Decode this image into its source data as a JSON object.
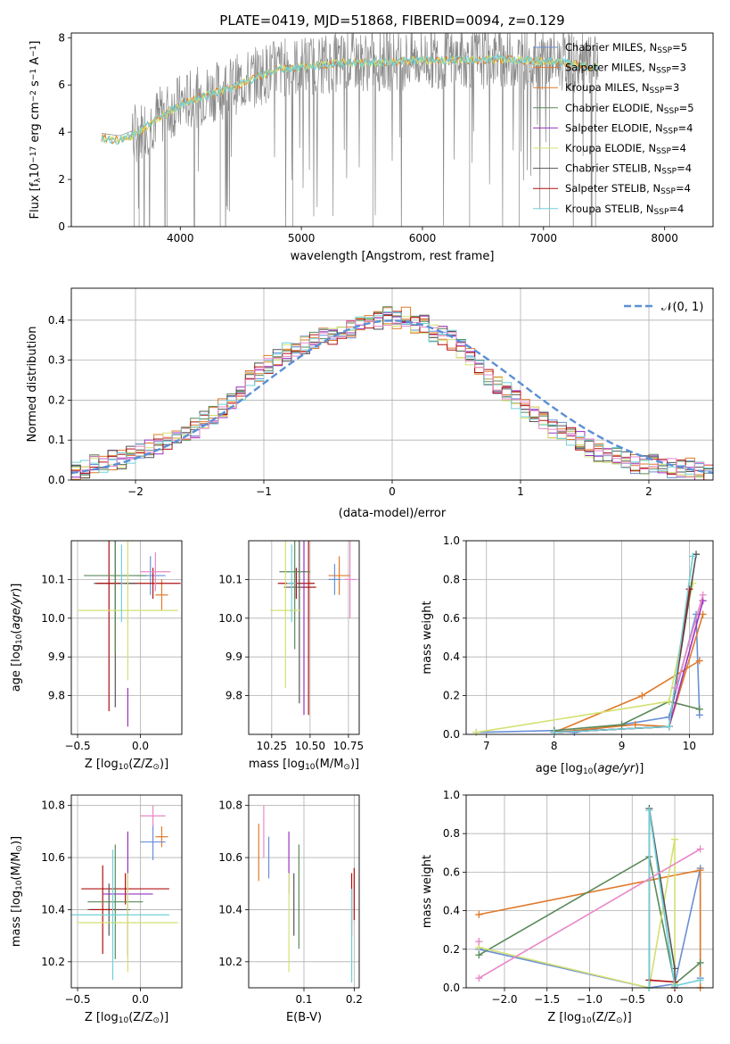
{
  "figure_title": "PLATE=0419, MJD=51868, FIBERID=0094, z=0.129",
  "colors": [
    "#6a8fd8",
    "#e07a2a",
    "#e07a2a",
    "#5a8a5a",
    "#9b30c0",
    "#d4e070",
    "#555555",
    "#b01010",
    "#70d0d8",
    "#e888c8"
  ],
  "chart_data": [
    {
      "id": "spectrum",
      "type": "line",
      "title": "PLATE=0419, MJD=51868, FIBERID=0094, z=0.129",
      "xlabel": "wavelength [Angstrom, rest frame]",
      "ylabel": "Flux [f",
      "ylabel_sub": "λ",
      "ylabel_rest": "10",
      "ylabel_exp": "−17",
      "ylabel_units": " erg cm",
      "ylabel_units_exp": "−2",
      "ylabel_units2": " s",
      "ylabel_units2_exp": "−1",
      "ylabel_units3": " A",
      "ylabel_units3_exp": "−1",
      "ylabel_tail": "]",
      "xlim": [
        3100,
        8400
      ],
      "ylim": [
        0,
        8.2
      ],
      "xticks": [
        4000,
        5000,
        6000,
        7000,
        8000
      ],
      "yticks": [
        0,
        2,
        4,
        6,
        8
      ],
      "grid": false,
      "legend_position": "top-right",
      "legend": [
        {
          "label": "Chabrier MILES, N",
          "sub": "SSP",
          "tail": "=5",
          "color": "#6a8fd8"
        },
        {
          "label": "Salpeter MILES, N",
          "sub": "SSP",
          "tail": "=3",
          "color": "#e07a2a"
        },
        {
          "label": "Kroupa MILES, N",
          "sub": "SSP",
          "tail": "=3",
          "color": "#e07a2a"
        },
        {
          "label": "Chabrier ELODIE, N",
          "sub": "SSP",
          "tail": "=5",
          "color": "#5a8a5a"
        },
        {
          "label": "Salpeter ELODIE, N",
          "sub": "SSP",
          "tail": "=4",
          "color": "#9b30c0"
        },
        {
          "label": "Kroupa ELODIE, N",
          "sub": "SSP",
          "tail": "=4",
          "color": "#d4e070"
        },
        {
          "label": "Chabrier STELIB, N",
          "sub": "SSP",
          "tail": "=4",
          "color": "#555555"
        },
        {
          "label": "Salpeter STELIB, N",
          "sub": "SSP",
          "tail": "=4",
          "color": "#b01010"
        },
        {
          "label": "Kroupa STELIB, N",
          "sub": "SSP",
          "tail": "=4",
          "color": "#70d0d8"
        }
      ],
      "data_continuum": {
        "x": [
          3350,
          3500,
          3650,
          3800,
          4000,
          4200,
          4400,
          4600,
          4800,
          5000,
          5200,
          5400,
          5600,
          5800,
          6000,
          6200,
          6400,
          6600,
          6800,
          7000,
          7200,
          7400
        ],
        "y": [
          3.8,
          3.7,
          4.0,
          4.6,
          5.2,
          5.6,
          5.9,
          6.3,
          6.7,
          6.8,
          6.9,
          7.0,
          7.0,
          7.05,
          7.1,
          7.1,
          7.1,
          7.15,
          7.1,
          7.05,
          7.0,
          6.8
        ]
      }
    },
    {
      "id": "residuals",
      "type": "line",
      "xlabel": "(data-model)/error",
      "ylabel": "Normed distribution",
      "xlim": [
        -2.5,
        2.5
      ],
      "ylim": [
        0,
        0.48
      ],
      "xticks": [
        -2,
        -1,
        0,
        1,
        2
      ],
      "xtick_labels": [
        "−2",
        "−1",
        "0",
        "1",
        "2"
      ],
      "yticks": [
        0.0,
        0.1,
        0.2,
        0.3,
        0.4
      ],
      "ytick_labels": [
        "0.0",
        "0.1",
        "0.2",
        "0.3",
        "0.4"
      ],
      "grid": true,
      "legend_position": "top-right",
      "legend_label": "𝒩(0, 1)",
      "gaussian": {
        "mean": 0,
        "sigma": 1
      },
      "histogram_bin_width": 0.1,
      "histogram_mean": [
        0.02,
        0.03,
        0.04,
        0.04,
        0.05,
        0.05,
        0.06,
        0.07,
        0.08,
        0.09,
        0.1,
        0.11,
        0.12,
        0.13,
        0.15,
        0.16,
        0.18,
        0.2,
        0.22,
        0.25,
        0.27,
        0.29,
        0.31,
        0.32,
        0.33,
        0.34,
        0.35,
        0.36,
        0.36,
        0.37,
        0.38,
        0.39,
        0.4,
        0.4,
        0.41,
        0.4,
        0.41,
        0.39,
        0.39,
        0.37,
        0.36,
        0.35,
        0.33,
        0.31,
        0.29,
        0.26,
        0.24,
        0.22,
        0.2,
        0.18,
        0.16,
        0.15,
        0.13,
        0.12,
        0.11,
        0.1,
        0.08,
        0.07,
        0.06,
        0.06,
        0.05,
        0.04,
        0.04,
        0.04,
        0.03,
        0.03,
        0.03,
        0.03,
        0.02,
        0.02
      ]
    },
    {
      "id": "age_vs_Z",
      "type": "scatter",
      "xlabel": "Z [log",
      "xlabel_sub": "10",
      "xlabel_rest": "(Z/Z",
      "xlabel_sub2": "⊙",
      "xlabel_tail": ")]",
      "ylabel": "age  [log",
      "ylabel_sub": "10",
      "ylabel_tail": "(age/yr)]",
      "xlim": [
        -0.55,
        0.33
      ],
      "ylim": [
        9.7,
        10.2
      ],
      "xticks": [
        -0.5,
        0.0
      ],
      "xtick_labels": [
        "−0.5",
        "0.0"
      ],
      "yticks": [
        9.8,
        9.9,
        10.0,
        10.1
      ],
      "ytick_labels": [
        "9.8",
        "9.9",
        "10.0",
        "10.1"
      ],
      "grid": true,
      "points": [
        {
          "x": 0.17,
          "y": 10.06,
          "xerr": 0.05,
          "yerr": 0.04,
          "color": "#e07a2a"
        },
        {
          "x": 0.08,
          "y": 10.11,
          "xerr": 0.12,
          "yerr": 0.05,
          "color": "#6a8fd8"
        },
        {
          "x": 0.1,
          "y": 10.09,
          "xerr": 0.22,
          "yerr": 0.04,
          "color": "#b01010"
        },
        {
          "x": -0.2,
          "y": 10.09,
          "xerr": 0.17,
          "yerr": 0.32,
          "color": "#555555"
        },
        {
          "x": -0.25,
          "y": 10.09,
          "xerr": 0.1,
          "yerr": 0.33,
          "color": "#b01010"
        },
        {
          "x": -0.2,
          "y": 10.11,
          "xerr": 0.25,
          "yerr": 0.2,
          "color": "#5a8a5a"
        },
        {
          "x": -0.1,
          "y": 9.77,
          "xerr": 0.0,
          "yerr": 0.05,
          "color": "#9b30c0"
        },
        {
          "x": -0.1,
          "y": 10.02,
          "xerr": 0.4,
          "yerr": 0.18,
          "color": "#d4e070"
        },
        {
          "x": -0.15,
          "y": 10.09,
          "xerr": 0.0,
          "yerr": 0.1,
          "color": "#70d0d8"
        },
        {
          "x": 0.12,
          "y": 10.12,
          "xerr": 0.12,
          "yerr": 0.05,
          "color": "#e888c8"
        }
      ]
    },
    {
      "id": "age_vs_mass",
      "type": "scatter",
      "xlabel": "mass [log",
      "xlabel_sub": "10",
      "xlabel_rest": "(M/M",
      "xlabel_sub2": "⊙",
      "xlabel_tail": ")]",
      "xlim": [
        10.1,
        10.82
      ],
      "ylim": [
        9.7,
        10.2
      ],
      "xticks": [
        10.25,
        10.5,
        10.75
      ],
      "xtick_labels": [
        "10.25",
        "10.50",
        "10.75"
      ],
      "yticks": [
        9.8,
        9.9,
        10.0,
        10.1
      ],
      "ytick_labels": [
        "9.8",
        "9.9",
        "10.0",
        "10.1"
      ],
      "grid": true,
      "points": [
        {
          "x": 10.69,
          "y": 10.11,
          "xerr": 0.07,
          "yerr": 0.05,
          "color": "#e07a2a"
        },
        {
          "x": 10.66,
          "y": 10.1,
          "xerr": 0.04,
          "yerr": 0.04,
          "color": "#6a8fd8"
        },
        {
          "x": 10.41,
          "y": 10.09,
          "xerr": 0.12,
          "yerr": 0.04,
          "color": "#b01010"
        },
        {
          "x": 10.43,
          "y": 10.08,
          "xerr": 0.1,
          "yerr": 0.3,
          "color": "#555555"
        },
        {
          "x": 10.49,
          "y": 10.08,
          "xerr": 0.05,
          "yerr": 0.33,
          "color": "#b01010"
        },
        {
          "x": 10.4,
          "y": 10.12,
          "xerr": 0.1,
          "yerr": 0.2,
          "color": "#5a8a5a"
        },
        {
          "x": 10.46,
          "y": 10.0,
          "xerr": 0.0,
          "yerr": 0.25,
          "color": "#9b30c0"
        },
        {
          "x": 10.34,
          "y": 10.02,
          "xerr": 0.1,
          "yerr": 0.2,
          "color": "#d4e070"
        },
        {
          "x": 10.38,
          "y": 10.09,
          "xerr": 0.03,
          "yerr": 0.1,
          "color": "#70d0d8"
        },
        {
          "x": 10.76,
          "y": 10.1,
          "xerr": 0.04,
          "yerr": 0.1,
          "color": "#e888c8"
        }
      ]
    },
    {
      "id": "weight_vs_age",
      "type": "line",
      "xlabel": "age  [log",
      "xlabel_sub": "10",
      "xlabel_tail": "(age/yr)]",
      "ylabel": "mass weight",
      "xlim": [
        6.7,
        10.35
      ],
      "ylim": [
        0,
        1.0
      ],
      "xticks": [
        7,
        8,
        9,
        10
      ],
      "xtick_labels": [
        "7",
        "8",
        "9",
        "10"
      ],
      "yticks": [
        0.0,
        0.2,
        0.4,
        0.6,
        0.8,
        1.0
      ],
      "ytick_labels": [
        "0.0",
        "0.2",
        "0.4",
        "0.6",
        "0.8",
        "1.0"
      ],
      "grid": true,
      "series": [
        {
          "color": "#6a8fd8",
          "x": [
            6.85,
            8.0,
            8.3,
            9.7,
            10.1,
            10.15
          ],
          "y": [
            0.01,
            0.02,
            0.01,
            0.09,
            0.62,
            0.1
          ]
        },
        {
          "color": "#e07a2a",
          "x": [
            8.0,
            9.3,
            10.15
          ],
          "y": [
            0.01,
            0.2,
            0.38
          ]
        },
        {
          "color": "#e07a2a",
          "x": [
            8.0,
            9.2,
            9.7,
            10.2
          ],
          "y": [
            0.01,
            0.05,
            0.04,
            0.62
          ]
        },
        {
          "color": "#5a8a5a",
          "x": [
            8.0,
            9.0,
            9.7,
            10.15
          ],
          "y": [
            0.02,
            0.05,
            0.17,
            0.13
          ]
        },
        {
          "color": "#9b30c0",
          "x": [
            8.0,
            9.7,
            10.2
          ],
          "y": [
            0.01,
            0.04,
            0.69
          ]
        },
        {
          "color": "#d4e070",
          "x": [
            6.85,
            9.7,
            10.05
          ],
          "y": [
            0.01,
            0.17,
            0.78
          ]
        },
        {
          "color": "#555555",
          "x": [
            8.0,
            9.7,
            10.1
          ],
          "y": [
            0.01,
            0.04,
            0.93
          ]
        },
        {
          "color": "#b01010",
          "x": [
            8.0,
            9.7,
            10.0
          ],
          "y": [
            0.01,
            0.04,
            0.75
          ]
        },
        {
          "color": "#70d0d8",
          "x": [
            8.0,
            9.7,
            10.05
          ],
          "y": [
            0.01,
            0.04,
            0.92
          ]
        },
        {
          "color": "#e888c8",
          "x": [
            9.8,
            10.2
          ],
          "y": [
            0.24,
            0.72
          ]
        }
      ]
    },
    {
      "id": "mass_vs_Z",
      "type": "scatter",
      "xlabel": "Z [log",
      "xlabel_sub": "10",
      "xlabel_rest": "(Z/Z",
      "xlabel_sub2": "⊙",
      "xlabel_tail": ")]",
      "ylabel": "mass [log",
      "ylabel_sub": "10",
      "ylabel_rest": "(M/M",
      "ylabel_sub2": "⊙",
      "ylabel_tail": ")]",
      "xlim": [
        -0.55,
        0.33
      ],
      "ylim": [
        10.1,
        10.84
      ],
      "xticks": [
        -0.5,
        0.0
      ],
      "xtick_labels": [
        "−0.5",
        "0.0"
      ],
      "yticks": [
        10.2,
        10.4,
        10.6,
        10.8
      ],
      "ytick_labels": [
        "10.2",
        "10.4",
        "10.6",
        "10.8"
      ],
      "grid": true,
      "points": [
        {
          "x": 0.17,
          "y": 10.68,
          "xerr": 0.05,
          "yerr": 0.04,
          "color": "#e07a2a"
        },
        {
          "x": 0.1,
          "y": 10.66,
          "xerr": 0.1,
          "yerr": 0.07,
          "color": "#6a8fd8"
        },
        {
          "x": -0.12,
          "y": 10.48,
          "xerr": 0.35,
          "yerr": 0.06,
          "color": "#b01010"
        },
        {
          "x": -0.25,
          "y": 10.4,
          "xerr": 0.17,
          "yerr": 0.1,
          "color": "#555555"
        },
        {
          "x": -0.3,
          "y": 10.4,
          "xerr": 0.1,
          "yerr": 0.17,
          "color": "#b01010"
        },
        {
          "x": -0.2,
          "y": 10.43,
          "xerr": 0.22,
          "yerr": 0.22,
          "color": "#5a8a5a"
        },
        {
          "x": -0.1,
          "y": 10.46,
          "xerr": 0.2,
          "yerr": 0.24,
          "color": "#9b30c0"
        },
        {
          "x": -0.1,
          "y": 10.35,
          "xerr": 0.4,
          "yerr": 0.19,
          "color": "#d4e070"
        },
        {
          "x": -0.22,
          "y": 10.38,
          "xerr": 0.45,
          "yerr": 0.25,
          "color": "#70d0d8"
        },
        {
          "x": 0.1,
          "y": 10.76,
          "xerr": 0.1,
          "yerr": 0.04,
          "color": "#e888c8"
        }
      ]
    },
    {
      "id": "mass_vs_ebv",
      "type": "scatter",
      "xlabel": "E(B-V)",
      "xlim": [
        -0.01,
        0.21
      ],
      "ylim": [
        10.1,
        10.84
      ],
      "xticks": [
        0.1,
        0.2
      ],
      "xtick_labels": [
        "0.1",
        "0.2"
      ],
      "yticks": [
        10.2,
        10.4,
        10.6,
        10.8
      ],
      "ytick_labels": [
        "10.2",
        "10.4",
        "10.6",
        "10.8"
      ],
      "grid": true,
      "points": [
        {
          "x": 0.01,
          "y": 10.62,
          "xerr": 0.0,
          "yerr": 0.11,
          "color": "#e07a2a"
        },
        {
          "x": 0.03,
          "y": 10.6,
          "xerr": 0.0,
          "yerr": 0.08,
          "color": "#6a8fd8"
        },
        {
          "x": 0.2,
          "y": 10.46,
          "xerr": 0.0,
          "yerr": 0.1,
          "color": "#b01010"
        },
        {
          "x": 0.08,
          "y": 10.42,
          "xerr": 0.0,
          "yerr": 0.12,
          "color": "#555555"
        },
        {
          "x": 0.195,
          "y": 10.42,
          "xerr": 0.0,
          "yerr": 0.12,
          "color": "#b01010"
        },
        {
          "x": 0.09,
          "y": 10.45,
          "xerr": 0.0,
          "yerr": 0.2,
          "color": "#5a8a5a"
        },
        {
          "x": 0.07,
          "y": 10.58,
          "xerr": 0.0,
          "yerr": 0.12,
          "color": "#9b30c0"
        },
        {
          "x": 0.07,
          "y": 10.35,
          "xerr": 0.0,
          "yerr": 0.19,
          "color": "#d4e070"
        },
        {
          "x": 0.195,
          "y": 10.3,
          "xerr": 0.0,
          "yerr": 0.18,
          "color": "#70d0d8"
        },
        {
          "x": 0.02,
          "y": 10.7,
          "xerr": 0.0,
          "yerr": 0.1,
          "color": "#e888c8"
        }
      ]
    },
    {
      "id": "weight_vs_Z",
      "type": "line",
      "xlabel": "Z [log",
      "xlabel_sub": "10",
      "xlabel_rest": "(Z/Z",
      "xlabel_sub2": "⊙",
      "xlabel_tail": ")]",
      "ylabel": "mass weight",
      "xlim": [
        -2.45,
        0.45
      ],
      "ylim": [
        0,
        1.0
      ],
      "xticks": [
        -2.0,
        -1.5,
        -1.0,
        -0.5,
        0.0
      ],
      "xtick_labels": [
        "−2.0",
        "−1.5",
        "−1.0",
        "−0.5",
        "0.0"
      ],
      "yticks": [
        0.0,
        0.2,
        0.4,
        0.6,
        0.8,
        1.0
      ],
      "ytick_labels": [
        "0.0",
        "0.2",
        "0.4",
        "0.6",
        "0.8",
        "1.0"
      ],
      "grid": true,
      "series": [
        {
          "color": "#6a8fd8",
          "x": [
            -2.3,
            -0.3,
            0.0,
            0.3,
            0.3
          ],
          "y": [
            0.2,
            0.0,
            0.02,
            0.62,
            0.05
          ]
        },
        {
          "color": "#e07a2a",
          "x": [
            -2.3,
            0.3,
            0.3
          ],
          "y": [
            0.38,
            0.61,
            0.0
          ]
        },
        {
          "color": "#5a8a5a",
          "x": [
            -2.3,
            -0.3,
            0.0,
            0.3
          ],
          "y": [
            0.17,
            0.68,
            0.02,
            0.13
          ]
        },
        {
          "color": "#d4e070",
          "x": [
            -2.3,
            -0.3,
            0.0,
            0.0
          ],
          "y": [
            0.21,
            0.0,
            0.77,
            0.02
          ]
        },
        {
          "color": "#555555",
          "x": [
            -0.3,
            -0.3,
            0.0,
            0.0
          ],
          "y": [
            0.0,
            0.93,
            0.1,
            0.0
          ]
        },
        {
          "color": "#b01010",
          "x": [
            -0.3,
            0.0,
            0.0
          ],
          "y": [
            0.04,
            0.03,
            0.0
          ]
        },
        {
          "color": "#70d0d8",
          "x": [
            -0.3,
            -0.3,
            0.0,
            0.3
          ],
          "y": [
            0.0,
            0.92,
            0.01,
            0.04
          ]
        },
        {
          "color": "#e888c8",
          "x": [
            -2.3,
            0.3
          ],
          "y": [
            0.05,
            0.72
          ]
        },
        {
          "color": "#e888c8",
          "x": [
            -2.3,
            -2.3
          ],
          "y": [
            0.24,
            0.24
          ]
        }
      ]
    }
  ]
}
